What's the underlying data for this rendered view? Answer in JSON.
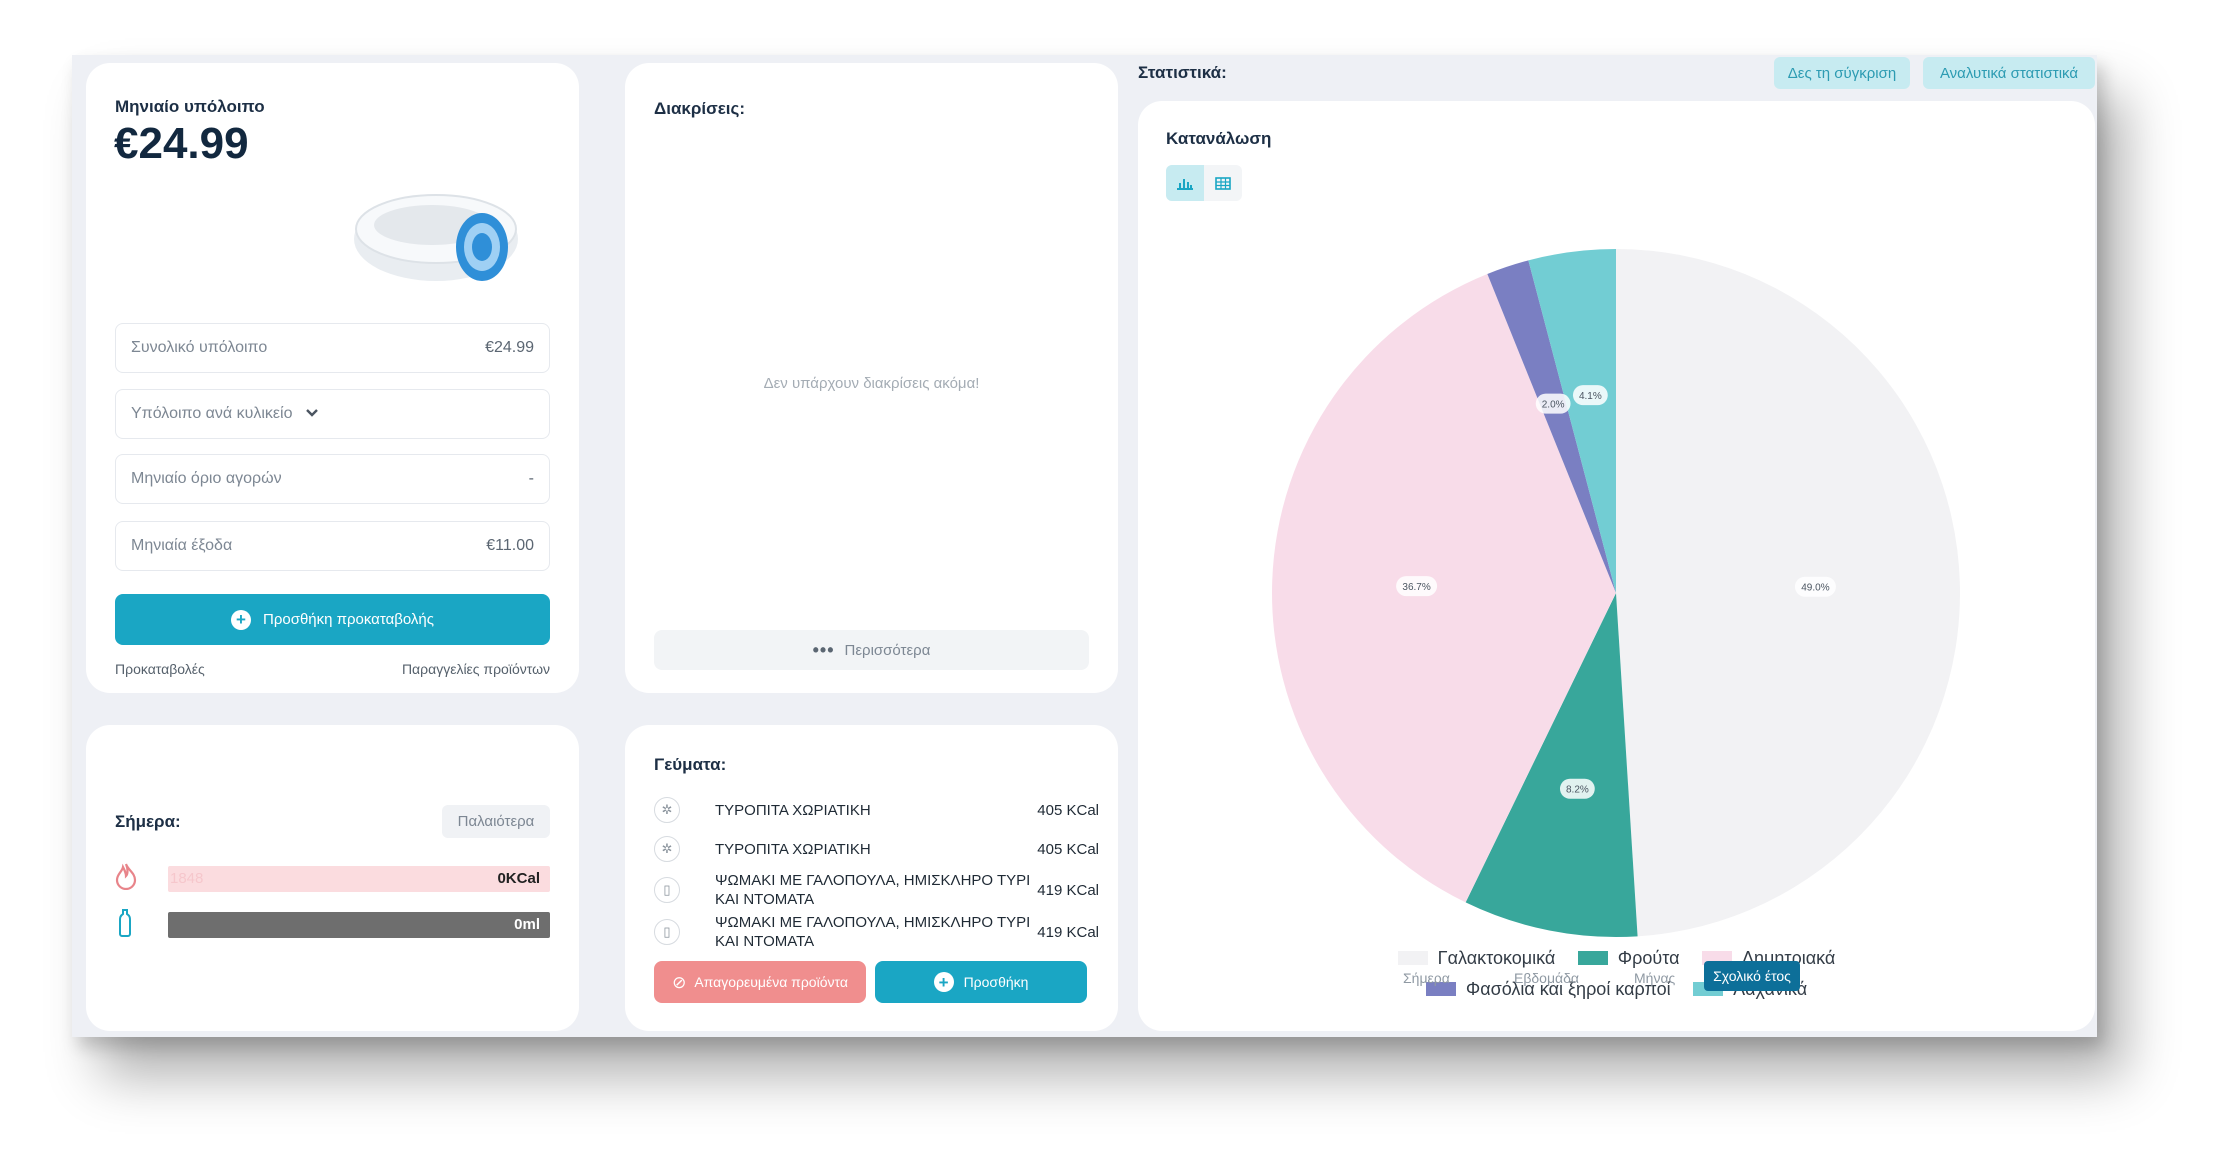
{
  "balance": {
    "title": "Μηνιαίο υπόλοιπο",
    "amount": "€24.99",
    "rows": [
      {
        "label": "Συνολικό υπόλοιπο",
        "value": "€24.99"
      },
      {
        "label": "Υπόλοιπο ανά κυλικείο"
      },
      {
        "label": "Μηνιαίο όριο αγορών",
        "value": "-"
      },
      {
        "label": "Μηνιαία έξοδα",
        "value": "€11.00"
      }
    ],
    "add_prepayment_label": "Προσθήκη προκαταβολής",
    "prepayments_link": "Προκαταβολές",
    "orders_link": "Παραγγελίες προϊόντων"
  },
  "today": {
    "title": "Σήμερα:",
    "older_button": "Παλαιότερα",
    "calories_goal": "1848",
    "calories_value": "0KCal",
    "water_value": "0ml",
    "colors": {
      "calories_bar": "#fbdcdf",
      "water_bar": "#6e6e6e",
      "accent": "#e8848a"
    }
  },
  "awards": {
    "title": "Διακρίσεις:",
    "empty_text": "Δεν υπάρχουν διακρίσεις ακόμα!",
    "more_button": "Περισσότερα"
  },
  "meals": {
    "title": "Γεύματα:",
    "items": [
      {
        "name": "ΤΥΡΟΠΙΤΑ ΧΩΡΙΑΤΙΚΗ",
        "kcal": "405 KCal",
        "icon": "food-icon"
      },
      {
        "name": "ΤΥΡΟΠΙΤΑ ΧΩΡΙΑΤΙΚΗ",
        "kcal": "405 KCal",
        "icon": "food-icon"
      },
      {
        "name": "ΨΩΜΑΚΙ ΜΕ ΓΑΛΟΠΟΥΛΑ, ΗΜΙΣΚΛΗΡΟ ΤΥΡΙ ΚΑΙ ΝΤΟΜΑΤΑ",
        "kcal": "419 KCal",
        "icon": "sandwich-icon"
      },
      {
        "name": "ΨΩΜΑΚΙ ΜΕ ΓΑΛΟΠΟΥΛΑ, ΗΜΙΣΚΛΗΡΟ ΤΥΡΙ ΚΑΙ ΝΤΟΜΑΤΑ",
        "kcal": "419 KCal",
        "icon": "sandwich-icon"
      }
    ],
    "forbidden_button": "Απαγορευμένα προϊόντα",
    "add_button": "Προσθήκη",
    "colors": {
      "forbidden": "#f08e8e",
      "add": "#1aa6c4"
    }
  },
  "stats": {
    "title": "Στατιστικά:",
    "compare_button": "Δες τη σύγκριση",
    "detailed_button": "Αναλυτικά στατιστικά",
    "panel_title": "Κατανάλωση",
    "view_toggle": [
      "bar-chart-icon",
      "table-icon"
    ],
    "periods": [
      "Σήμερα",
      "Εβδομάδα",
      "Μήνας",
      "Σχολικό έτος"
    ],
    "active_period": "Σχολικό έτος"
  },
  "chart_data": {
    "type": "pie",
    "slices": [
      {
        "label": "Γαλακτοκομικά",
        "value": 49.0,
        "data_label": "49.0%",
        "color": "#f2f2f4"
      },
      {
        "label": "Φρούτα",
        "value": 8.2,
        "data_label": "8.2%",
        "color": "#38a79b"
      },
      {
        "label": "Δημητριακά",
        "value": 36.7,
        "data_label": "36.7%",
        "color": "#f8dce9"
      },
      {
        "label": "Φασόλια και ξηροί καρποί",
        "value": 2.0,
        "data_label": "2.0%",
        "color": "#7a7fc2"
      },
      {
        "label": "Λαχανικά",
        "value": 4.1,
        "data_label": "4.1%",
        "color": "#72cdd3"
      }
    ],
    "legend_position": "bottom"
  }
}
